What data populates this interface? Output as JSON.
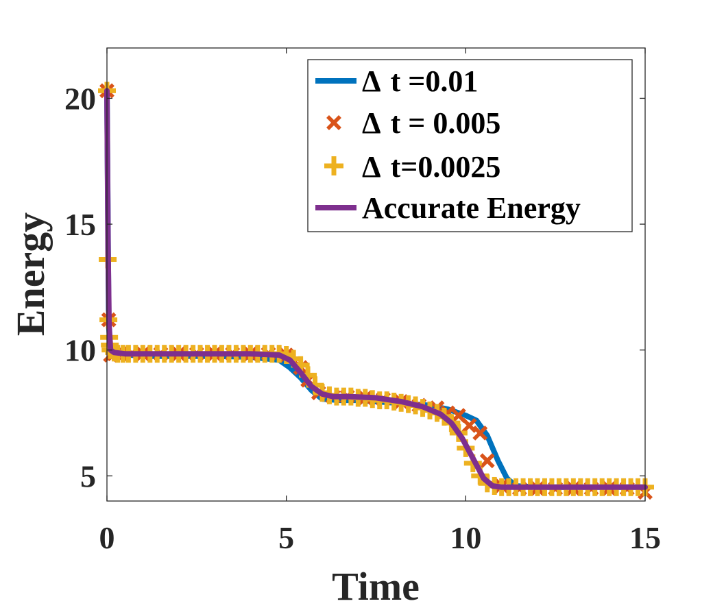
{
  "chart_data": {
    "type": "line",
    "title": "",
    "xlabel": "Time",
    "ylabel": "Energy",
    "xlim": [
      0,
      15
    ],
    "ylim": [
      4,
      22
    ],
    "xticks": [
      0,
      5,
      10,
      15
    ],
    "yticks": [
      5,
      10,
      15,
      20
    ],
    "xtick_labels": [
      "0",
      "5",
      "10",
      "15"
    ],
    "ytick_labels": [
      "5",
      "10",
      "15",
      "20"
    ],
    "grid": false,
    "legend_position": "top-right",
    "series": [
      {
        "name": "Δ t =0.01",
        "legend_symbol": "Δ",
        "legend_text": "t =0.01",
        "style": "line",
        "color": "#0072BD",
        "x": [
          0,
          0.05,
          0.1,
          0.3,
          1,
          2,
          3,
          4,
          4.8,
          5.1,
          5.4,
          5.7,
          6.0,
          6.5,
          7,
          8,
          9,
          9.5,
          10.0,
          10.3,
          10.6,
          10.9,
          11.15,
          11.4,
          12,
          13,
          14,
          15
        ],
        "values": [
          20.3,
          11.0,
          10.0,
          9.85,
          9.75,
          9.75,
          9.75,
          9.72,
          9.6,
          9.3,
          8.9,
          8.4,
          8.05,
          8.0,
          8.0,
          7.9,
          7.8,
          7.65,
          7.4,
          7.2,
          6.6,
          5.6,
          4.9,
          4.6,
          4.55,
          4.55,
          4.55,
          4.55
        ]
      },
      {
        "name": "Δ t = 0.005",
        "legend_symbol": "Δ",
        "legend_text": "t = 0.005",
        "style": "marker-x",
        "color": "#D95319",
        "x": [
          0,
          0.05,
          0.1,
          0.2,
          0.4,
          0.7,
          1.0,
          1.5,
          2.0,
          2.5,
          3.0,
          3.5,
          4.0,
          4.5,
          5.0,
          5.4,
          5.6,
          5.9,
          6.3,
          6.7,
          7.2,
          7.7,
          8.2,
          8.7,
          9.2,
          9.5,
          9.8,
          10.1,
          10.4,
          10.6,
          11.0,
          11.5,
          12.0,
          12.5,
          13.0,
          13.5,
          14.0,
          14.5,
          15.0
        ],
        "values": [
          20.3,
          11.2,
          9.8,
          9.85,
          9.85,
          9.85,
          9.85,
          9.85,
          9.85,
          9.85,
          9.85,
          9.85,
          9.85,
          9.85,
          9.8,
          9.3,
          8.8,
          8.3,
          8.15,
          8.15,
          8.1,
          8.05,
          7.95,
          7.8,
          7.7,
          7.5,
          7.4,
          7.0,
          6.7,
          5.6,
          4.6,
          4.5,
          4.5,
          4.5,
          4.5,
          4.5,
          4.5,
          4.5,
          4.35
        ]
      },
      {
        "name": "Δ t=0.0025",
        "legend_symbol": "Δ",
        "legend_text": "t=0.0025",
        "style": "marker-plus",
        "color": "#EDB120",
        "x": [
          0,
          0.02,
          0.04,
          0.06,
          0.08,
          0.1,
          0.2,
          0.3,
          0.45,
          0.6,
          0.8,
          1.0,
          1.2,
          1.4,
          1.6,
          1.8,
          2.0,
          2.2,
          2.4,
          2.6,
          2.8,
          3.0,
          3.2,
          3.4,
          3.6,
          3.8,
          4.0,
          4.2,
          4.4,
          4.6,
          4.8,
          5.0,
          5.2,
          5.4,
          5.6,
          5.8,
          6.0,
          6.2,
          6.4,
          6.6,
          6.8,
          7.0,
          7.2,
          7.4,
          7.6,
          7.8,
          8.0,
          8.2,
          8.4,
          8.6,
          8.8,
          9.0,
          9.2,
          9.4,
          9.6,
          9.8,
          10.0,
          10.2,
          10.4,
          10.6,
          10.8,
          11.0,
          11.2,
          11.4,
          11.6,
          11.8,
          12.0,
          12.2,
          12.4,
          12.6,
          12.8,
          13.0,
          13.2,
          13.4,
          13.6,
          13.8,
          14.0,
          14.2,
          14.4,
          14.6,
          14.8,
          15.0
        ],
        "values": [
          20.3,
          13.6,
          11.2,
          10.5,
          10.2,
          10.0,
          9.9,
          9.85,
          9.85,
          9.85,
          9.85,
          9.85,
          9.85,
          9.85,
          9.85,
          9.85,
          9.85,
          9.85,
          9.85,
          9.85,
          9.85,
          9.85,
          9.85,
          9.85,
          9.85,
          9.85,
          9.85,
          9.85,
          9.85,
          9.85,
          9.85,
          9.8,
          9.65,
          9.4,
          9.0,
          8.6,
          8.3,
          8.2,
          8.15,
          8.15,
          8.15,
          8.1,
          8.1,
          8.05,
          8.0,
          8.0,
          7.95,
          7.9,
          7.85,
          7.8,
          7.7,
          7.6,
          7.5,
          7.35,
          7.1,
          6.7,
          6.1,
          5.5,
          5.0,
          4.7,
          4.6,
          4.55,
          4.55,
          4.55,
          4.55,
          4.55,
          4.55,
          4.55,
          4.55,
          4.55,
          4.55,
          4.55,
          4.55,
          4.55,
          4.55,
          4.55,
          4.55,
          4.55,
          4.55,
          4.55,
          4.55,
          4.55
        ]
      },
      {
        "name": "Accurate Energy",
        "legend_symbol": "",
        "legend_text": "Accurate Energy",
        "style": "line",
        "color": "#7E2F8E",
        "x": [
          0,
          0.03,
          0.06,
          0.1,
          0.2,
          0.5,
          1,
          2,
          3,
          4,
          4.8,
          5.1,
          5.4,
          5.7,
          6.0,
          6.3,
          6.7,
          7.5,
          8.2,
          8.8,
          9.3,
          9.6,
          9.9,
          10.2,
          10.5,
          10.75,
          11.0,
          11.5,
          12,
          13,
          14,
          15
        ],
        "values": [
          20.3,
          14.0,
          11.0,
          10.0,
          9.9,
          9.85,
          9.85,
          9.85,
          9.85,
          9.85,
          9.8,
          9.6,
          9.1,
          8.55,
          8.25,
          8.15,
          8.15,
          8.1,
          7.95,
          7.75,
          7.45,
          7.1,
          6.5,
          5.7,
          4.9,
          4.6,
          4.55,
          4.55,
          4.55,
          4.55,
          4.55,
          4.55
        ]
      }
    ]
  }
}
